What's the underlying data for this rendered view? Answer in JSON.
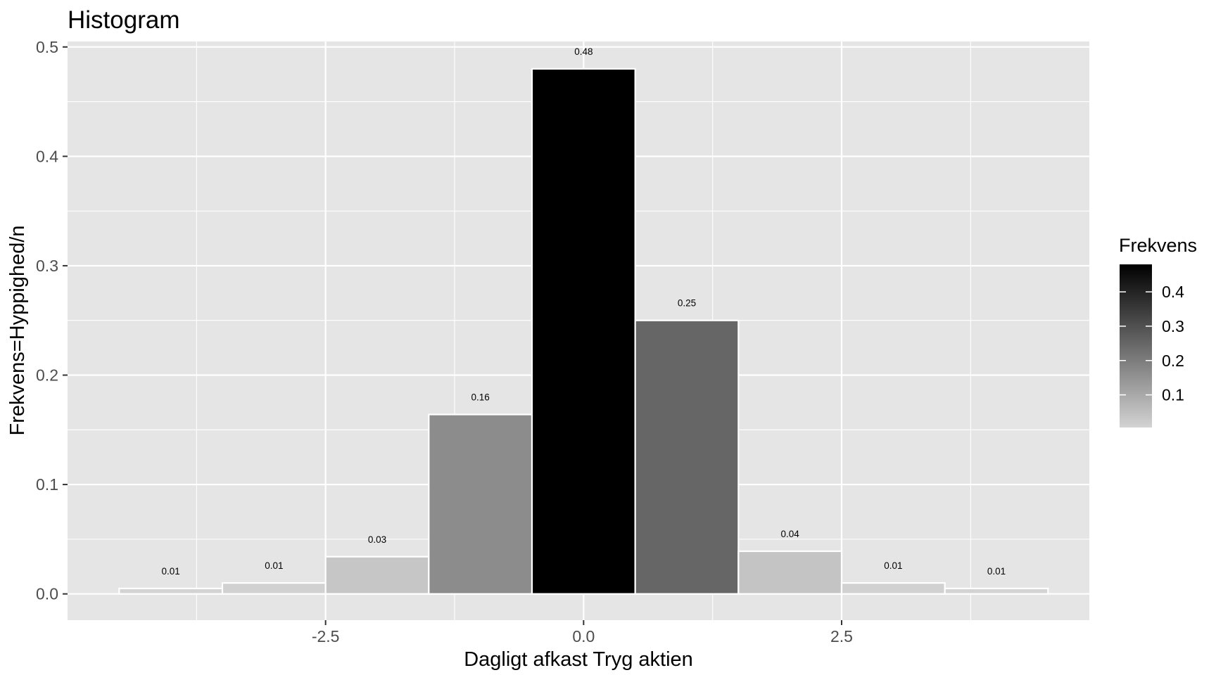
{
  "chart_data": {
    "type": "bar",
    "title": "Histogram",
    "xlabel": "Dagligt afkast Tryg aktien",
    "ylabel": "Frekvens=Hyppighed/n",
    "x_ticks": [
      "-2.5",
      "0.0",
      "2.5"
    ],
    "x_tick_values": [
      -2.5,
      0.0,
      2.5
    ],
    "x_minor_gridlines": [
      -3.75,
      -1.25,
      1.25,
      3.75
    ],
    "y_ticks": [
      "0.0",
      "0.1",
      "0.2",
      "0.3",
      "0.4",
      "0.5"
    ],
    "y_tick_values": [
      0.0,
      0.1,
      0.2,
      0.3,
      0.4,
      0.5
    ],
    "xlim": [
      -5.0,
      4.9
    ],
    "ylim": [
      -0.024,
      0.505
    ],
    "grid": true,
    "bin_width": 1,
    "bins": [
      {
        "center": -4,
        "value": 0.005,
        "label": "0.01"
      },
      {
        "center": -3,
        "value": 0.01,
        "label": "0.01"
      },
      {
        "center": -2,
        "value": 0.034,
        "label": "0.03"
      },
      {
        "center": -1,
        "value": 0.164,
        "label": "0.16"
      },
      {
        "center": 0,
        "value": 0.48,
        "label": "0.48"
      },
      {
        "center": 1,
        "value": 0.25,
        "label": "0.25"
      },
      {
        "center": 2,
        "value": 0.039,
        "label": "0.04"
      },
      {
        "center": 3,
        "value": 0.01,
        "label": "0.01"
      },
      {
        "center": 4,
        "value": 0.005,
        "label": "0.01"
      }
    ],
    "legend": {
      "title": "Frekvens",
      "position": "right",
      "labels": [
        "0.4",
        "0.3",
        "0.2",
        "0.1"
      ],
      "label_values": [
        0.4,
        0.3,
        0.2,
        0.1
      ],
      "range": [
        0.005,
        0.48
      ],
      "color_low": "#d3d3d3",
      "color_high": "#000000"
    },
    "colors": {
      "panel_background": "#e5e5e5",
      "grid_line": "#ffffff",
      "bar_outline": "#ffffff",
      "tick_label": "#4d4d4d"
    }
  }
}
